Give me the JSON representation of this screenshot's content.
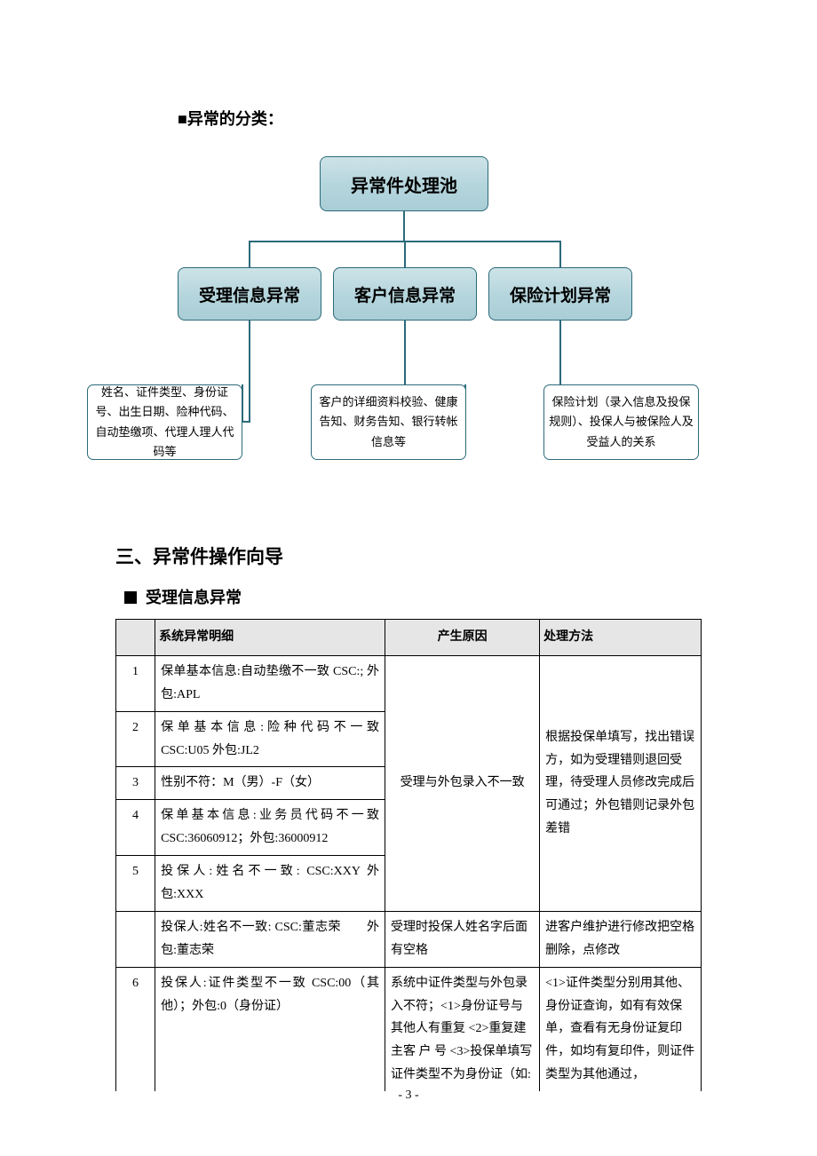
{
  "heading_cat": "■异常的分类：",
  "org": {
    "root": "异常件处理池",
    "mid1": "受理信息异常",
    "mid2": "客户信息异常",
    "mid3": "保险计划异常",
    "leaf1": "姓名、证件类型、身份证号、出生日期、险种代码、自动垫缴项、代理人理人代码等",
    "leaf2": "客户的详细资料校验、健康告知、财务告知、银行转帐信息等",
    "leaf3": "保险计划（录入信息及投保规则）、投保人与被保险人及受益人的关系",
    "node_fill_top": "#cde3e8",
    "node_fill_bottom": "#a9cdd6",
    "node_border": "#2b6a7a",
    "leaf_bg": "#ffffff"
  },
  "section_title": "三、异常件操作向导",
  "sub_heading": "受理信息异常",
  "table": {
    "headers": [
      "",
      "系统异常明细",
      "产生原因",
      "处理方法"
    ],
    "merged_cause": "受理与外包录入不一致",
    "merged_method": "根据投保单填写，找出错误方，如为受理错则退回受理，待受理人员修改完成后可通过；外包错则记录外包差错",
    "rows": [
      {
        "n": "1",
        "detail": "保单基本信息:自动垫缴不一致 CSC:; 外包:APL"
      },
      {
        "n": "2",
        "detail": "保 单 基 本 信 息 : 险 种 代 码 不 一 致 CSC:U05 外包:JL2"
      },
      {
        "n": "3",
        "detail": "性别不符：M（男）-F（女）"
      },
      {
        "n": "4",
        "detail": "保单基本信息:业务员代码不一致 CSC:36060912；外包:36000912"
      },
      {
        "n": "5",
        "detail": "投保人:姓名不一致: CSC:XXY 外包:XXX"
      }
    ],
    "row_sp": {
      "n": "",
      "detail": "投保人:姓名不一致: CSC:董志荣　　外包:董志荣",
      "cause": "受理时投保人姓名字后面有空格",
      "method": "进客户维护进行修改把空格删除，点修改"
    },
    "row6": {
      "n": "6",
      "detail": "投保人:证件类型不一致 CSC:00（其他）；外包:0（身份证）",
      "cause": "系统中证件类型与外包录入不符；<1>身份证号与其他人有重复 <2>重复建主客 户 号 <3>投保单填写证件类型不为身份证（如:",
      "method": "<1>证件类型分别用其他、身份证查询，如有有效保单，查看有无身份证复印件，如均有复印件，则证件类型为其他通过，"
    },
    "header_bg": "#e6e6e6",
    "border_color": "#000000"
  },
  "page_number": "- 3 -"
}
